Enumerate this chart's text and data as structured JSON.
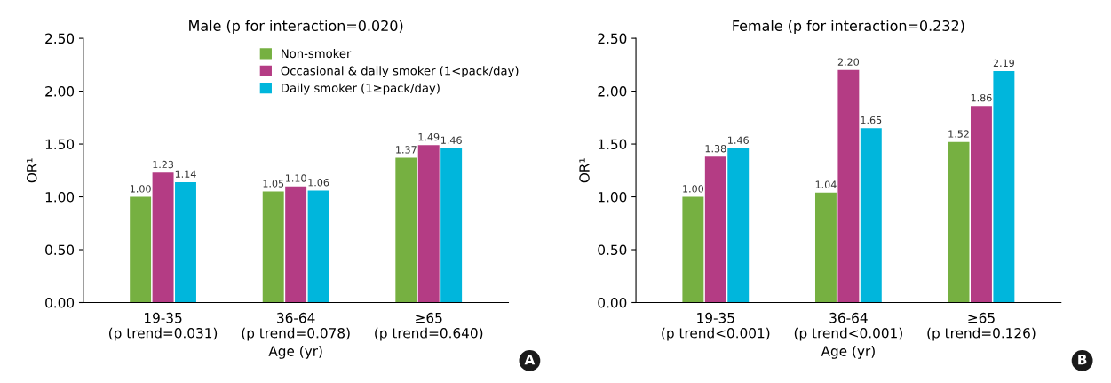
{
  "chart_data": [
    {
      "type": "bar",
      "title": "Male (p for interaction=0.020)",
      "xlabel": "Age (yr)",
      "ylabel": "OR¹",
      "categories": [
        "19-35\n(p trend=0.031)",
        "36-64\n(p trend=0.078)",
        "≥65\n(p trend=0.640)"
      ],
      "series": [
        {
          "name": "Non-smoker",
          "color": "#76b041",
          "values": [
            1.0,
            1.05,
            1.37
          ],
          "value_labels": [
            "1.00",
            "1.05",
            "1.37"
          ]
        },
        {
          "name": "Occasional & daily smoker (1<pack/day)",
          "color": "#b43c84",
          "values": [
            1.23,
            1.1,
            1.49
          ],
          "value_labels": [
            "1.23",
            "1.10",
            "1.49"
          ]
        },
        {
          "name": "Daily smoker (1≥pack/day)",
          "color": "#00b6dc",
          "values": [
            1.14,
            1.06,
            1.46
          ],
          "value_labels": [
            "1.14",
            "1.06",
            "1.46"
          ]
        }
      ],
      "ylim": [
        0,
        2.5
      ],
      "yticks": [
        {
          "value": 0,
          "label": "0.00"
        },
        {
          "value": 0.5,
          "label": "0.50"
        },
        {
          "value": 1,
          "label": "1.00"
        },
        {
          "value": 1.5,
          "label": "1.50"
        },
        {
          "value": 2,
          "label": "2.00"
        },
        {
          "value": 2.5,
          "label": "2.50"
        }
      ],
      "legend": "top right",
      "annotations": [
        "A"
      ]
    },
    {
      "type": "bar",
      "title": "Female (p for interaction=0.232)",
      "xlabel": "Age (yr)",
      "ylabel": "OR¹",
      "categories": [
        "19-35\n(p trend<0.001)",
        "36-64\n(p trend<0.001)",
        "≥65\n(p trend=0.126)"
      ],
      "series": [
        {
          "color": "#76b041",
          "values": [
            1.0,
            1.04,
            1.52
          ],
          "value_labels": [
            "1.00",
            "1.04",
            "1.52"
          ]
        },
        {
          "color": "#b43c84",
          "values": [
            1.38,
            2.2,
            1.86
          ],
          "value_labels": [
            "1.38",
            "2.20",
            "1.86"
          ]
        },
        {
          "color": "#00b6dc",
          "values": [
            1.46,
            1.65,
            2.19
          ],
          "value_labels": [
            "1.46",
            "1.65",
            "2.19"
          ]
        }
      ],
      "ylim": [
        0,
        2.5
      ],
      "yticks": [
        {
          "value": 0,
          "label": "0.00"
        },
        {
          "value": 0.5,
          "label": "0.50"
        },
        {
          "value": 1,
          "label": "1.00"
        },
        {
          "value": 1.5,
          "label": "1.50"
        },
        {
          "value": 2,
          "label": "2.00"
        },
        {
          "value": 2.5,
          "label": "2.50"
        }
      ],
      "annotations": [
        "B"
      ]
    }
  ]
}
